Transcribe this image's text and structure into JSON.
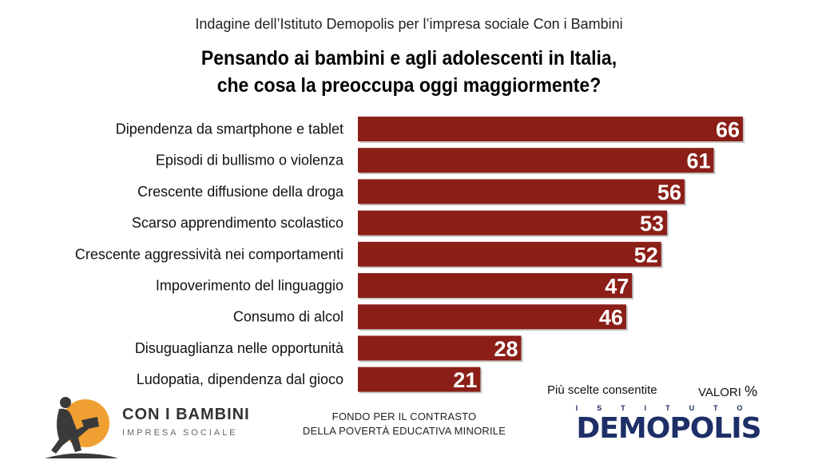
{
  "header": {
    "subtitle": "Indagine dell’Istituto Demopolis per l’impresa sociale Con i Bambini",
    "title_line1": "Pensando ai bambini e agli adolescenti in Italia,",
    "title_line2": "che cosa la preoccupa oggi maggiormente?"
  },
  "chart_data": {
    "type": "bar",
    "orientation": "horizontal",
    "categories": [
      "Dipendenza da smartphone e tablet",
      "Episodi di bullismo o violenza",
      "Crescente diffusione della droga",
      "Scarso apprendimento scolastico",
      "Crescente aggressività nei comportamenti",
      "Impoverimento del linguaggio",
      "Consumo di alcol",
      "Disuguaglianza nelle opportunità",
      "Ludopatia, dipendenza dal gioco"
    ],
    "values": [
      66,
      61,
      56,
      53,
      52,
      47,
      46,
      28,
      21
    ],
    "bar_color": "#8b1f18",
    "xlim": [
      0,
      66
    ],
    "grid": false,
    "legend": "none"
  },
  "notes": {
    "choices": "Più scelte consentite",
    "values_label": "VALORI",
    "values_unit": "%"
  },
  "footer": {
    "fondo_line1": "FONDO PER IL CONTRASTO",
    "fondo_line2": "DELLA POVERTÀ EDUCATIVA MINORILE",
    "left_logo_name": "CON I BAMBINI",
    "left_logo_sub": "IMPRESA SOCIALE",
    "right_logo_top": "ISTITUTO",
    "right_logo_name": "DEMOPOLIS"
  },
  "colors": {
    "bar": "#8b1f18",
    "logo_orange": "#f0a032",
    "logo_navy": "#1d2f66"
  }
}
